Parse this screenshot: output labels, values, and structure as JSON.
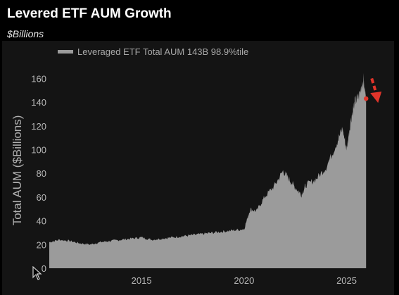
{
  "header": {
    "title": "Levered ETF AUM Growth",
    "subtitle": "$Billions"
  },
  "legend": {
    "label": "Leveraged ETF Total AUM 143B 98.9%tile",
    "color": "#9b9b9b"
  },
  "colors": {
    "area": "#9b9b9b",
    "marker": "#e0342a",
    "background": "#000000",
    "panel": "#141414"
  },
  "chart_data": {
    "type": "area",
    "title": "Levered ETF AUM Growth",
    "subtitle": "$Billions",
    "ylabel": "Total AUM ($Billions)",
    "xlabel": "",
    "xlim": [
      2010.5,
      2026.8
    ],
    "ylim": [
      0,
      165
    ],
    "yticks": [
      0,
      20,
      40,
      60,
      80,
      100,
      120,
      140,
      160
    ],
    "xticks": [
      2015,
      2020,
      2025
    ],
    "grid": false,
    "legend_position": "top-left",
    "series": [
      {
        "name": "Leveraged ETF Total AUM 143B 98.9%tile",
        "x": [
          2010.5,
          2011.0,
          2011.5,
          2012.0,
          2012.5,
          2013.0,
          2013.5,
          2014.0,
          2014.5,
          2015.0,
          2015.5,
          2016.0,
          2016.5,
          2017.0,
          2017.5,
          2018.0,
          2018.5,
          2019.0,
          2019.5,
          2020.0,
          2020.3,
          2020.6,
          2021.0,
          2021.5,
          2021.9,
          2022.2,
          2022.5,
          2022.8,
          2023.0,
          2023.5,
          2024.0,
          2024.5,
          2024.8,
          2025.0,
          2025.2,
          2025.4,
          2025.6,
          2025.8,
          2025.95
        ],
        "values": [
          22,
          24,
          23,
          21,
          20,
          22,
          23,
          24,
          25,
          26,
          24,
          25,
          26,
          27,
          28,
          29,
          30,
          31,
          32,
          33,
          50,
          48,
          60,
          70,
          82,
          75,
          68,
          62,
          70,
          75,
          85,
          105,
          118,
          100,
          125,
          140,
          145,
          160,
          143
        ]
      }
    ],
    "annotation": {
      "label": "143B",
      "last_value": 143,
      "marker_year": 2025.95,
      "arrow_end": [
        2026.5,
        143
      ]
    }
  }
}
